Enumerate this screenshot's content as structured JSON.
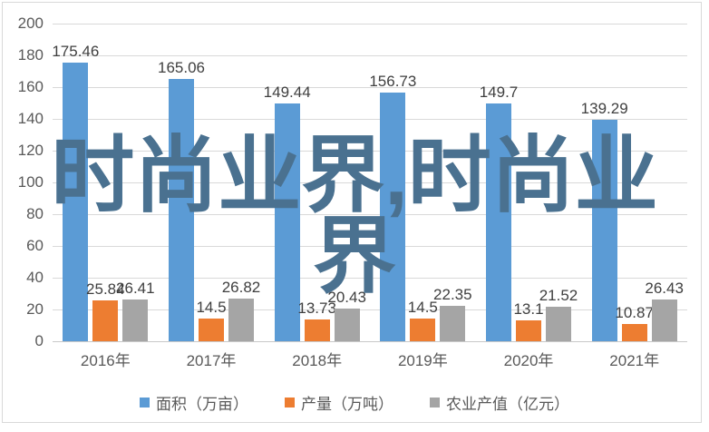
{
  "chart_data": {
    "type": "bar",
    "title": "",
    "categories": [
      "2016年",
      "2017年",
      "2018年",
      "2019年",
      "2020年",
      "2021年"
    ],
    "series": [
      {
        "name": "面积（万亩）",
        "color": "#5B9BD5",
        "values": [
          175.46,
          165.06,
          149.44,
          156.73,
          149.7,
          139.29
        ]
      },
      {
        "name": "产量（万吨）",
        "color": "#ED7D31",
        "values": [
          25.84,
          14.5,
          13.73,
          14.5,
          13.1,
          10.87
        ]
      },
      {
        "name": "农业产值（亿元）",
        "color": "#A5A5A5",
        "values": [
          26.41,
          26.82,
          20.43,
          22.35,
          21.52,
          26.43
        ]
      }
    ],
    "yticks": [
      0,
      20,
      40,
      60,
      80,
      100,
      120,
      140,
      160,
      180,
      200
    ],
    "ylim": [
      0,
      200
    ],
    "grid": true,
    "data_labels": true,
    "legend_position": "bottom",
    "xlabel": "",
    "ylabel": ""
  },
  "watermark": {
    "line1": "时尚业界,时尚业",
    "line2": "界",
    "color": "#4A7190"
  },
  "colors": {
    "background": "#FFFFFF",
    "frame_border": "#D9D9D9",
    "gridline": "#D9D9D9",
    "axis_line": "#C9C9C9",
    "axis_label": "#595959",
    "data_label": "#3F3F3F"
  }
}
